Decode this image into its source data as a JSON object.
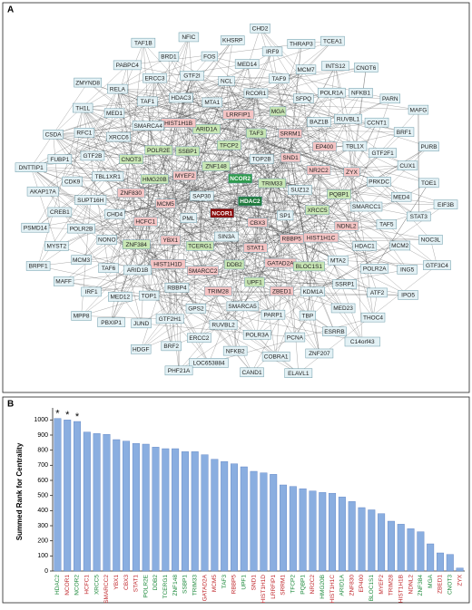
{
  "chart_data": [
    {
      "type": "network",
      "panel_label": "A",
      "nodes": [
        {
          "label": "HDAC2",
          "color": "#1e7a3c"
        },
        {
          "label": "NCOR1",
          "color": "#8b0a0a"
        },
        {
          "label": "NCOR2",
          "color": "#2e9a4c"
        },
        {
          "label": "CBX3",
          "color": "#f4c4c4"
        },
        {
          "label": "SAP30",
          "color": "#e3f1f5"
        },
        {
          "label": "TRIM33",
          "color": "#c8e6b4"
        },
        {
          "label": "SIN3A",
          "color": "#e3f1f5"
        },
        {
          "label": "ZNF148",
          "color": "#c8e6b4"
        },
        {
          "label": "SP1",
          "color": "#e3f1f5"
        },
        {
          "label": "PML",
          "color": "#e3f1f5"
        },
        {
          "label": "TOP2B",
          "color": "#e3f1f5"
        },
        {
          "label": "STAT1",
          "color": "#f4c4c4"
        },
        {
          "label": "MYEF2",
          "color": "#f4c4c4"
        },
        {
          "label": "SUZ12",
          "color": "#e3f1f5"
        },
        {
          "label": "TCERG1",
          "color": "#c8e6b4"
        },
        {
          "label": "TFCP2",
          "color": "#c8e6b4"
        },
        {
          "label": "RBBP5",
          "color": "#f4c4c4"
        },
        {
          "label": "MCM5",
          "color": "#f4c4c4"
        },
        {
          "label": "SND1",
          "color": "#f4c4c4"
        },
        {
          "label": "DDB2",
          "color": "#c8e6b4"
        },
        {
          "label": "SSBP1",
          "color": "#c8e6b4"
        },
        {
          "label": "XRCC5",
          "color": "#c8e6b4"
        },
        {
          "label": "YBX1",
          "color": "#f4c4c4"
        },
        {
          "label": "TAF3",
          "color": "#c8e6b4"
        },
        {
          "label": "GATAD2A",
          "color": "#f4c4c4"
        },
        {
          "label": "HMG20B",
          "color": "#c8e6b4"
        },
        {
          "label": "NR2C2",
          "color": "#f4c4c4"
        },
        {
          "label": "SMARCC2",
          "color": "#f4c4c4"
        },
        {
          "label": "ARID1A",
          "color": "#c8e6b4"
        },
        {
          "label": "HIST1H1C",
          "color": "#f4c4c4"
        },
        {
          "label": "HCFC1",
          "color": "#f4c4c4"
        },
        {
          "label": "SRRM1",
          "color": "#f4c4c4"
        },
        {
          "label": "UPF1",
          "color": "#c8e6b4"
        },
        {
          "label": "POLR2E",
          "color": "#c8e6b4"
        },
        {
          "label": "PQBP1",
          "color": "#c8e6b4"
        },
        {
          "label": "HIST1H1D",
          "color": "#f4c4c4"
        },
        {
          "label": "LRRFIP1",
          "color": "#f4c4c4"
        },
        {
          "label": "BLOC1S1",
          "color": "#c8e6b4"
        },
        {
          "label": "ZNF830",
          "color": "#f4c4c4"
        },
        {
          "label": "EP400",
          "color": "#f4c4c4"
        },
        {
          "label": "TRIM28",
          "color": "#f4c4c4"
        },
        {
          "label": "HIST1H1B",
          "color": "#f4c4c4"
        },
        {
          "label": "NDNL2",
          "color": "#f4c4c4"
        },
        {
          "label": "ZNF384",
          "color": "#c8e6b4"
        },
        {
          "label": "MGA",
          "color": "#c8e6b4"
        },
        {
          "label": "ZBED1",
          "color": "#f4c4c4"
        },
        {
          "label": "CNOT3",
          "color": "#c8e6b4"
        },
        {
          "label": "ZYX",
          "color": "#f4c4c4"
        },
        {
          "label": "RBBP4",
          "color": "#e3f1f5"
        },
        {
          "label": "MTA1",
          "color": "#e3f1f5"
        },
        {
          "label": "MTA2",
          "color": "#e3f1f5"
        },
        {
          "label": "CHD4",
          "color": "#e3f1f5"
        },
        {
          "label": "BAZ1B",
          "color": "#e3f1f5"
        },
        {
          "label": "SMARCA5",
          "color": "#e3f1f5"
        },
        {
          "label": "SMARCA4",
          "color": "#e3f1f5"
        },
        {
          "label": "SMARCC1",
          "color": "#e3f1f5"
        },
        {
          "label": "ARID1B",
          "color": "#e3f1f5"
        },
        {
          "label": "RCOR1",
          "color": "#e3f1f5"
        },
        {
          "label": "KDM1A",
          "color": "#e3f1f5"
        },
        {
          "label": "TBL1XR1",
          "color": "#e3f1f5"
        },
        {
          "label": "TBL1X",
          "color": "#e3f1f5"
        },
        {
          "label": "GPS2",
          "color": "#e3f1f5"
        },
        {
          "label": "HDAC3",
          "color": "#e3f1f5"
        },
        {
          "label": "HDAC1",
          "color": "#e3f1f5"
        },
        {
          "label": "NONO",
          "color": "#e3f1f5"
        },
        {
          "label": "SFPQ",
          "color": "#e3f1f5"
        },
        {
          "label": "PARP1",
          "color": "#e3f1f5"
        },
        {
          "label": "XRCC6",
          "color": "#e3f1f5"
        },
        {
          "label": "PRKDC",
          "color": "#e3f1f5"
        },
        {
          "label": "TOP1",
          "color": "#e3f1f5"
        },
        {
          "label": "NCL",
          "color": "#e3f1f5"
        },
        {
          "label": "SSRP1",
          "color": "#e3f1f5"
        },
        {
          "label": "SUPT16H",
          "color": "#e3f1f5"
        },
        {
          "label": "RUVBL1",
          "color": "#e3f1f5"
        },
        {
          "label": "RUVBL2",
          "color": "#e3f1f5"
        },
        {
          "label": "TAF1",
          "color": "#e3f1f5"
        },
        {
          "label": "TAF5",
          "color": "#e3f1f5"
        },
        {
          "label": "TAF6",
          "color": "#e3f1f5"
        },
        {
          "label": "TAF9",
          "color": "#e3f1f5"
        },
        {
          "label": "TBP",
          "color": "#e3f1f5"
        },
        {
          "label": "GTF2B",
          "color": "#e3f1f5"
        },
        {
          "label": "GTF2F1",
          "color": "#e3f1f5"
        },
        {
          "label": "GTF2H1",
          "color": "#e3f1f5"
        },
        {
          "label": "GTF2I",
          "color": "#e3f1f5"
        },
        {
          "label": "POLR2A",
          "color": "#e3f1f5"
        },
        {
          "label": "POLR2B",
          "color": "#e3f1f5"
        },
        {
          "label": "POLR1A",
          "color": "#e3f1f5"
        },
        {
          "label": "POLR3A",
          "color": "#e3f1f5"
        },
        {
          "label": "MED1",
          "color": "#e3f1f5"
        },
        {
          "label": "MED4",
          "color": "#e3f1f5"
        },
        {
          "label": "MED12",
          "color": "#e3f1f5"
        },
        {
          "label": "MED14",
          "color": "#e3f1f5"
        },
        {
          "label": "MED23",
          "color": "#e3f1f5"
        },
        {
          "label": "CDK9",
          "color": "#e3f1f5"
        },
        {
          "label": "CCNT1",
          "color": "#e3f1f5"
        },
        {
          "label": "ERCC2",
          "color": "#e3f1f5"
        },
        {
          "label": "ERCC3",
          "color": "#e3f1f5"
        },
        {
          "label": "MCM2",
          "color": "#e3f1f5"
        },
        {
          "label": "MCM3",
          "color": "#e3f1f5"
        },
        {
          "label": "MCM7",
          "color": "#e3f1f5"
        },
        {
          "label": "PCNA",
          "color": "#e3f1f5"
        },
        {
          "label": "RFC1",
          "color": "#e3f1f5"
        },
        {
          "label": "CUX1",
          "color": "#e3f1f5"
        },
        {
          "label": "JUND",
          "color": "#e3f1f5"
        },
        {
          "label": "FOS",
          "color": "#e3f1f5"
        },
        {
          "label": "ATF2",
          "color": "#e3f1f5"
        },
        {
          "label": "CREB1",
          "color": "#e3f1f5"
        },
        {
          "label": "NFKB1",
          "color": "#e3f1f5"
        },
        {
          "label": "NFKB2",
          "color": "#e3f1f5"
        },
        {
          "label": "RELA",
          "color": "#e3f1f5"
        },
        {
          "label": "STAT3",
          "color": "#e3f1f5"
        },
        {
          "label": "IRF1",
          "color": "#e3f1f5"
        },
        {
          "label": "IRF9",
          "color": "#e3f1f5"
        },
        {
          "label": "ESRRB",
          "color": "#e3f1f5"
        },
        {
          "label": "FUBP1",
          "color": "#e3f1f5"
        },
        {
          "label": "BRF1",
          "color": "#e3f1f5"
        },
        {
          "label": "BRF2",
          "color": "#e3f1f5"
        },
        {
          "label": "BRD1",
          "color": "#e3f1f5"
        },
        {
          "label": "ING5",
          "color": "#e3f1f5"
        },
        {
          "label": "MYST2",
          "color": "#e3f1f5"
        },
        {
          "label": "INTS12",
          "color": "#e3f1f5"
        },
        {
          "label": "COBRA1",
          "color": "#e3f1f5"
        },
        {
          "label": "TH1L",
          "color": "#e3f1f5"
        },
        {
          "label": "TOE1",
          "color": "#e3f1f5"
        },
        {
          "label": "PBXIP1",
          "color": "#e3f1f5"
        },
        {
          "label": "KHSRP",
          "color": "#e3f1f5"
        },
        {
          "label": "THOC4",
          "color": "#e3f1f5"
        },
        {
          "label": "AKAP17A",
          "color": "#e3f1f5"
        },
        {
          "label": "PARN",
          "color": "#e3f1f5"
        },
        {
          "label": "LOC653884",
          "color": "#e3f1f5"
        },
        {
          "label": "PABPC4",
          "color": "#e3f1f5"
        },
        {
          "label": "NOC3L",
          "color": "#e3f1f5"
        },
        {
          "label": "MAFF",
          "color": "#e3f1f5"
        },
        {
          "label": "THRAP3",
          "color": "#e3f1f5"
        },
        {
          "label": "ZNF207",
          "color": "#e3f1f5"
        },
        {
          "label": "CSDA",
          "color": "#e3f1f5"
        },
        {
          "label": "PURB",
          "color": "#e3f1f5"
        },
        {
          "label": "HDGF",
          "color": "#e3f1f5"
        },
        {
          "label": "NFIC",
          "color": "#e3f1f5"
        },
        {
          "label": "IPO5",
          "color": "#e3f1f5"
        },
        {
          "label": "PSMD14",
          "color": "#e3f1f5"
        },
        {
          "label": "CNOT6",
          "color": "#e3f1f5"
        },
        {
          "label": "CAND1",
          "color": "#e3f1f5"
        },
        {
          "label": "ZMYND8",
          "color": "#e3f1f5"
        },
        {
          "label": "EIF3B",
          "color": "#e3f1f5"
        },
        {
          "label": "MPP8",
          "color": "#e3f1f5"
        },
        {
          "label": "CHD2",
          "color": "#e3f1f5"
        },
        {
          "label": "C14orf43",
          "color": "#e3f1f5"
        },
        {
          "label": "DNTTIP1",
          "color": "#e3f1f5"
        },
        {
          "label": "MAFG",
          "color": "#e3f1f5"
        },
        {
          "label": "PHF21A",
          "color": "#e3f1f5"
        },
        {
          "label": "TAF1B",
          "color": "#e3f1f5"
        },
        {
          "label": "GTF3C4",
          "color": "#e3f1f5"
        },
        {
          "label": "BRPF1",
          "color": "#e3f1f5"
        },
        {
          "label": "TCEA1",
          "color": "#e3f1f5"
        },
        {
          "label": "ELAVL1",
          "color": "#e3f1f5"
        }
      ]
    },
    {
      "type": "bar",
      "panel_label": "B",
      "ylabel": "Summed Rank for Centrality",
      "categories": [
        "HDAC2",
        "NCOR1",
        "NCOR2",
        "HCFC1",
        "XRCC5",
        "SMARCC2",
        "YBX1",
        "CBX3",
        "STAT1",
        "POLR2E",
        "DDB2",
        "TCERG1",
        "ZNF148",
        "SSBP1",
        "TRIM33",
        "GATAD2A",
        "MCM5",
        "TAF3",
        "RBBP5",
        "UPF1",
        "SND1",
        "HIST1H1D",
        "LRRFIP1",
        "SRRM1",
        "TFCP2",
        "PQBP1",
        "NR2C2",
        "HMG20B",
        "HIST1H1C",
        "ARID1A",
        "ZNF830",
        "EP400",
        "BLOC1S1",
        "MYEF2",
        "TRIM28",
        "HIST1H1B",
        "NDNL2",
        "ZNF384",
        "MGA",
        "ZBED1",
        "CNOT3",
        "ZYX"
      ],
      "label_colors": [
        "#1e8a3c",
        "#c0282d",
        "#1e8a3c",
        "#c0282d",
        "#1e8a3c",
        "#c0282d",
        "#c0282d",
        "#c0282d",
        "#c0282d",
        "#1e8a3c",
        "#1e8a3c",
        "#1e8a3c",
        "#1e8a3c",
        "#1e8a3c",
        "#1e8a3c",
        "#c0282d",
        "#c0282d",
        "#1e8a3c",
        "#c0282d",
        "#1e8a3c",
        "#c0282d",
        "#c0282d",
        "#c0282d",
        "#c0282d",
        "#1e8a3c",
        "#1e8a3c",
        "#c0282d",
        "#1e8a3c",
        "#c0282d",
        "#1e8a3c",
        "#c0282d",
        "#c0282d",
        "#1e8a3c",
        "#c0282d",
        "#c0282d",
        "#c0282d",
        "#c0282d",
        "#1e8a3c",
        "#1e8a3c",
        "#c0282d",
        "#1e8a3c",
        "#c0282d"
      ],
      "values": [
        1010,
        1000,
        990,
        920,
        910,
        905,
        870,
        860,
        845,
        840,
        820,
        810,
        810,
        790,
        790,
        770,
        740,
        725,
        710,
        690,
        660,
        650,
        640,
        570,
        560,
        545,
        530,
        520,
        515,
        490,
        460,
        420,
        405,
        380,
        330,
        310,
        280,
        260,
        180,
        120,
        110,
        20
      ],
      "annotations": [
        "*",
        "*",
        "*"
      ],
      "color": "#8aaee0",
      "ylim": [
        0,
        1050
      ],
      "yticks": [
        0,
        100,
        200,
        300,
        400,
        500,
        600,
        700,
        800,
        900,
        1000
      ]
    }
  ]
}
